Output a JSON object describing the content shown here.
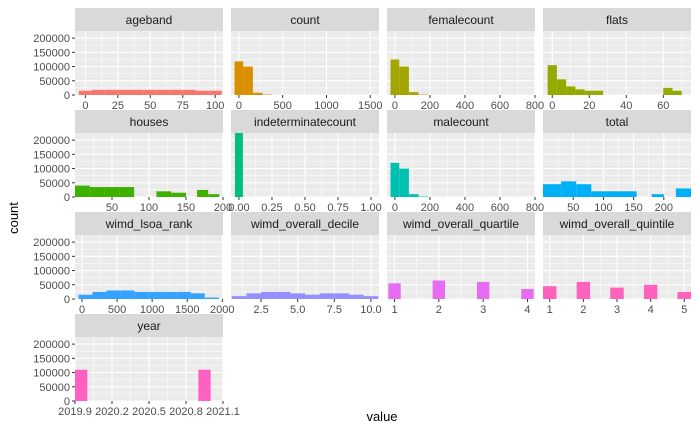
{
  "chart_data": {
    "type": "bar",
    "subtype": "faceted-histogram",
    "title": "",
    "xlabel": "value",
    "ylabel": "count",
    "ylim": [
      0,
      225000
    ],
    "y_ticks": [
      0,
      50000,
      100000,
      150000,
      200000
    ],
    "y_tick_labels": [
      "0",
      "50000",
      "100000",
      "150000",
      "200000"
    ],
    "grid": true,
    "legend": "none",
    "panel_background": "#ebebeb",
    "strip_background": "#d9d9d9",
    "facets": [
      {
        "name": "ageband",
        "color": "#F8766D",
        "xlim": [
          -8,
          106
        ],
        "x_ticks": [
          0,
          25,
          50,
          75,
          100
        ],
        "x_tick_labels": [
          "0",
          "25",
          "50",
          "75",
          "100"
        ],
        "bins": [
          [
            -5,
            5,
            15000
          ],
          [
            5,
            15,
            18000
          ],
          [
            15,
            25,
            18000
          ],
          [
            25,
            35,
            18000
          ],
          [
            35,
            45,
            18000
          ],
          [
            45,
            55,
            18000
          ],
          [
            55,
            65,
            18000
          ],
          [
            65,
            75,
            18000
          ],
          [
            75,
            85,
            18000
          ],
          [
            85,
            95,
            15000
          ],
          [
            95,
            105,
            15000
          ]
        ]
      },
      {
        "name": "count",
        "color": "#D89000",
        "xlim": [
          -90,
          1600
        ],
        "x_ticks": [
          0,
          500,
          1000,
          1500
        ],
        "x_tick_labels": [
          "0",
          "500",
          "1000",
          "1500"
        ],
        "bins": [
          [
            -50,
            50,
            118000
          ],
          [
            50,
            160,
            100000
          ],
          [
            160,
            270,
            8000
          ],
          [
            270,
            380,
            1500
          ]
        ]
      },
      {
        "name": "femalecount",
        "color": "#A3A500",
        "xlim": [
          -45,
          800
        ],
        "x_ticks": [
          0,
          200,
          400,
          600,
          800
        ],
        "x_tick_labels": [
          "0",
          "200",
          "400",
          "600",
          "800"
        ],
        "bins": [
          [
            -25,
            25,
            125000
          ],
          [
            25,
            80,
            100000
          ],
          [
            80,
            135,
            10000
          ],
          [
            135,
            190,
            1500
          ]
        ]
      },
      {
        "name": "flats",
        "color": "#93AA00",
        "xlim": [
          -5,
          75
        ],
        "x_ticks": [
          0,
          20,
          40,
          60
        ],
        "x_tick_labels": [
          "0",
          "20",
          "40",
          "60"
        ],
        "bins": [
          [
            -2.5,
            2.5,
            105000
          ],
          [
            2.5,
            7.5,
            55000
          ],
          [
            7.5,
            12.5,
            30000
          ],
          [
            12.5,
            17.5,
            20000
          ],
          [
            17.5,
            22.5,
            15000
          ],
          [
            22.5,
            27.5,
            15000
          ],
          [
            60,
            65,
            25000
          ],
          [
            65,
            70,
            15000
          ]
        ]
      },
      {
        "name": "houses",
        "color": "#3DB000",
        "xlim": [
          0,
          200
        ],
        "x_ticks": [
          50,
          100,
          150,
          200
        ],
        "x_tick_labels": [
          "50",
          "100",
          "150",
          "200"
        ],
        "bins": [
          [
            0,
            20,
            40000
          ],
          [
            20,
            40,
            35000
          ],
          [
            40,
            60,
            35000
          ],
          [
            60,
            80,
            35000
          ],
          [
            110,
            130,
            20000
          ],
          [
            130,
            150,
            15000
          ],
          [
            165,
            180,
            25000
          ],
          [
            180,
            195,
            10000
          ]
        ]
      },
      {
        "name": "indeterminatecount",
        "color": "#00BF7D",
        "xlim": [
          -0.06,
          1.06
        ],
        "x_ticks": [
          0,
          0.25,
          0.5,
          0.75,
          1
        ],
        "x_tick_labels": [
          "0.00",
          "0.25",
          "0.50",
          "0.75",
          "1.00"
        ],
        "bins": [
          [
            -0.03,
            0.03,
            225000
          ]
        ]
      },
      {
        "name": "malecount",
        "color": "#00C0AF",
        "xlim": [
          -45,
          800
        ],
        "x_ticks": [
          0,
          200,
          400,
          600,
          800
        ],
        "x_tick_labels": [
          "0",
          "200",
          "400",
          "600",
          "800"
        ],
        "bins": [
          [
            -25,
            25,
            120000
          ],
          [
            25,
            80,
            100000
          ],
          [
            80,
            135,
            10000
          ],
          [
            135,
            190,
            1500
          ]
        ]
      },
      {
        "name": "total",
        "color": "#00B0F6",
        "xlim": [
          0,
          245
        ],
        "x_ticks": [
          50,
          100,
          150,
          200
        ],
        "x_tick_labels": [
          "50",
          "100",
          "150",
          "200"
        ],
        "bins": [
          [
            0,
            30,
            45000
          ],
          [
            30,
            55,
            55000
          ],
          [
            55,
            80,
            45000
          ],
          [
            80,
            105,
            20000
          ],
          [
            105,
            130,
            20000
          ],
          [
            130,
            155,
            20000
          ],
          [
            180,
            200,
            10000
          ],
          [
            220,
            245,
            30000
          ]
        ]
      },
      {
        "name": "wimd_lsoa_rank",
        "color": "#35A2FF",
        "xlim": [
          -100,
          2010
        ],
        "x_ticks": [
          0,
          500,
          1000,
          1500,
          2000
        ],
        "x_tick_labels": [
          "0",
          "500",
          "1000",
          "1500",
          "2000"
        ],
        "bins": [
          [
            -50,
            150,
            15000
          ],
          [
            150,
            350,
            25000
          ],
          [
            350,
            550,
            30000
          ],
          [
            550,
            750,
            30000
          ],
          [
            750,
            950,
            25000
          ],
          [
            950,
            1150,
            25000
          ],
          [
            1150,
            1350,
            25000
          ],
          [
            1350,
            1550,
            25000
          ],
          [
            1550,
            1750,
            20000
          ],
          [
            1750,
            1950,
            5000
          ]
        ]
      },
      {
        "name": "wimd_overall_decile",
        "color": "#9590FF",
        "xlim": [
          0.45,
          10.55
        ],
        "x_ticks": [
          2.5,
          5,
          7.5,
          10
        ],
        "x_tick_labels": [
          "2.5",
          "5.0",
          "7.5",
          "10.0"
        ],
        "bins": [
          [
            0.5,
            1.5,
            10000
          ],
          [
            1.5,
            2.5,
            20000
          ],
          [
            2.5,
            3.5,
            25000
          ],
          [
            3.5,
            4.5,
            25000
          ],
          [
            4.5,
            5.5,
            20000
          ],
          [
            5.5,
            6.5,
            15000
          ],
          [
            6.5,
            7.5,
            20000
          ],
          [
            7.5,
            8.5,
            20000
          ],
          [
            8.5,
            9.5,
            15000
          ],
          [
            9.5,
            10.5,
            10000
          ]
        ]
      },
      {
        "name": "wimd_overall_quartile",
        "color": "#E76BF3",
        "xlim": [
          0.83,
          4.17
        ],
        "x_ticks": [
          1,
          2,
          3,
          4
        ],
        "x_tick_labels": [
          "1",
          "2",
          "3",
          "4"
        ],
        "bins": [
          [
            0.86,
            1.14,
            55000
          ],
          [
            1.86,
            2.14,
            65000
          ],
          [
            2.86,
            3.14,
            60000
          ],
          [
            3.86,
            4.14,
            35000
          ]
        ]
      },
      {
        "name": "wimd_overall_quintile",
        "color": "#FF62BC",
        "xlim": [
          0.8,
          5.2
        ],
        "x_ticks": [
          1,
          2,
          3,
          4,
          5
        ],
        "x_tick_labels": [
          "1",
          "2",
          "3",
          "4",
          "5"
        ],
        "bins": [
          [
            0.8,
            1.2,
            45000
          ],
          [
            1.8,
            2.2,
            60000
          ],
          [
            2.8,
            3.2,
            40000
          ],
          [
            3.8,
            4.2,
            50000
          ],
          [
            4.8,
            5.2,
            25000
          ]
        ]
      },
      {
        "name": "year",
        "color": "#FF61C3",
        "xlim": [
          2019.9,
          2021.1
        ],
        "x_ticks": [
          2019.9,
          2020.2,
          2020.5,
          2020.8,
          2021.1
        ],
        "x_tick_labels": [
          "2019.9",
          "2020.2",
          "2020.5",
          "2020.8",
          "2021.1"
        ],
        "bins": [
          [
            2019.9,
            2020.0,
            110000
          ],
          [
            2020.9,
            2021.0,
            110000
          ]
        ]
      }
    ]
  }
}
